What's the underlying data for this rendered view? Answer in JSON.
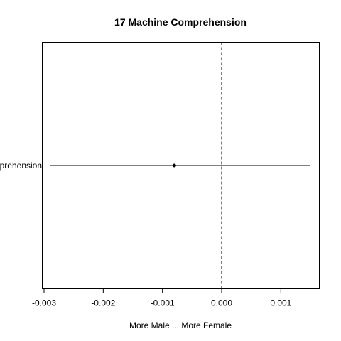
{
  "chart_data": {
    "type": "scatter",
    "title": "17 Machine Comprehension",
    "xlabel": "More Male ... More Female",
    "ylabel": "",
    "xlim": [
      -0.00303,
      0.00165
    ],
    "x_ticks": [
      -0.003,
      -0.002,
      -0.001,
      0.0,
      0.001
    ],
    "x_tick_labels": [
      "-0.003",
      "-0.002",
      "-0.001",
      "0.000",
      "0.001"
    ],
    "reference_line": {
      "x": 0.0,
      "style": "dashed"
    },
    "categories": [
      "Machine Comprehension"
    ],
    "points": [
      {
        "label": "Machine Comprehension",
        "estimate": -0.0008,
        "ci_low": -0.0029,
        "ci_high": 0.0015
      }
    ],
    "grid": false,
    "legend": "none"
  }
}
